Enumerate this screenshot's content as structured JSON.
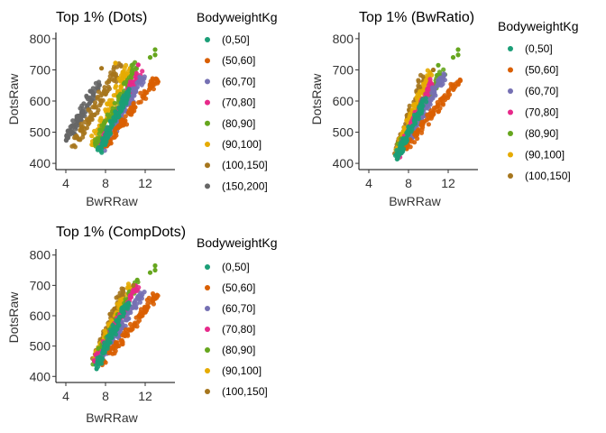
{
  "chart_data": [
    {
      "type": "scatter",
      "title": "Top 1% (Dots)",
      "xlabel": "BwRRaw",
      "ylabel": "DotsRaw",
      "xlim": [
        3,
        15
      ],
      "ylim": [
        380,
        820
      ],
      "xticks": [
        "4",
        "8",
        "12"
      ],
      "yticks": [
        "400",
        "500",
        "600",
        "700",
        "800"
      ],
      "legend_title": "BodyweightKg",
      "legend_placement": "right",
      "series": [
        {
          "name": "(0,50]",
          "color": "#1b9e77",
          "bands": [
            {
              "x0": 7.3,
              "y0": 440,
              "x1": 10.5,
              "y1": 640,
              "spread": 0.25
            }
          ]
        },
        {
          "name": "(50,60]",
          "color": "#d95f02",
          "bands": [
            {
              "x0": 8.0,
              "y0": 455,
              "x1": 13.0,
              "y1": 665,
              "spread": 0.3
            }
          ]
        },
        {
          "name": "(60,70]",
          "color": "#7570b3",
          "bands": [
            {
              "x0": 7.8,
              "y0": 450,
              "x1": 11.8,
              "y1": 680,
              "spread": 0.3
            }
          ]
        },
        {
          "name": "(70,80]",
          "color": "#e7298a",
          "bands": [
            {
              "x0": 7.5,
              "y0": 448,
              "x1": 11.5,
              "y1": 700,
              "spread": 0.3
            }
          ]
        },
        {
          "name": "(80,90]",
          "color": "#66a61e",
          "bands": [
            {
              "x0": 7.0,
              "y0": 452,
              "x1": 11.2,
              "y1": 720,
              "spread": 0.35
            }
          ]
        },
        {
          "name": "(90,100]",
          "color": "#e6ab02",
          "bands": [
            {
              "x0": 6.6,
              "y0": 460,
              "x1": 10.4,
              "y1": 710,
              "spread": 0.35
            }
          ]
        },
        {
          "name": "(100,150]",
          "color": "#a6761d",
          "bands": [
            {
              "x0": 4.8,
              "y0": 455,
              "x1": 9.5,
              "y1": 720,
              "spread": 0.45
            }
          ]
        },
        {
          "name": "(150,200]",
          "color": "#666666",
          "bands": [
            {
              "x0": 4.0,
              "y0": 470,
              "x1": 7.2,
              "y1": 650,
              "spread": 0.35
            }
          ]
        }
      ],
      "outliers": [
        {
          "series": "(80,90]",
          "x": 13.0,
          "y": 765
        },
        {
          "series": "(80,90]",
          "x": 13.0,
          "y": 748
        },
        {
          "series": "(80,90]",
          "x": 12.5,
          "y": 740
        },
        {
          "series": "(90,100]",
          "x": 9.0,
          "y": 722
        },
        {
          "series": "(70,80]",
          "x": 11.3,
          "y": 716
        },
        {
          "series": "(100,150]",
          "x": 7.6,
          "y": 705
        },
        {
          "series": "(50,60]",
          "x": 13.2,
          "y": 668
        },
        {
          "series": "(50,60]",
          "x": 13.3,
          "y": 662
        }
      ]
    },
    {
      "type": "scatter",
      "title": "Top 1% (BwRatio)",
      "xlabel": "BwRRaw",
      "ylabel": "DotsRaw",
      "xlim": [
        3,
        15
      ],
      "ylim": [
        380,
        820
      ],
      "xticks": [
        "4",
        "8",
        "12"
      ],
      "yticks": [
        "400",
        "500",
        "600",
        "700",
        "800"
      ],
      "legend_title": "BodyweightKg",
      "legend_placement": "right",
      "series": [
        {
          "name": "(0,50]",
          "color": "#1b9e77",
          "bands": [
            {
              "x0": 6.8,
              "y0": 418,
              "x1": 9.6,
              "y1": 600,
              "spread": 0.25
            }
          ]
        },
        {
          "name": "(50,60]",
          "color": "#d95f02",
          "bands": [
            {
              "x0": 7.5,
              "y0": 440,
              "x1": 13.0,
              "y1": 665,
              "spread": 0.3
            }
          ]
        },
        {
          "name": "(60,70]",
          "color": "#7570b3",
          "bands": [
            {
              "x0": 7.2,
              "y0": 435,
              "x1": 11.5,
              "y1": 680,
              "spread": 0.3
            }
          ]
        },
        {
          "name": "(70,80]",
          "color": "#e7298a",
          "bands": [
            {
              "x0": 7.0,
              "y0": 430,
              "x1": 10.5,
              "y1": 670,
              "spread": 0.3
            }
          ]
        },
        {
          "name": "(80,90]",
          "color": "#66a61e",
          "bands": [
            {
              "x0": 7.0,
              "y0": 440,
              "x1": 11.5,
              "y1": 700,
              "spread": 0.35
            }
          ]
        },
        {
          "name": "(90,100]",
          "color": "#e6ab02",
          "bands": [
            {
              "x0": 6.9,
              "y0": 445,
              "x1": 10.2,
              "y1": 690,
              "spread": 0.3
            }
          ]
        },
        {
          "name": "(100,150]",
          "color": "#a6761d",
          "bands": [
            {
              "x0": 6.8,
              "y0": 430,
              "x1": 9.5,
              "y1": 680,
              "spread": 0.3
            }
          ]
        }
      ],
      "outliers": [
        {
          "series": "(80,90]",
          "x": 13.0,
          "y": 765
        },
        {
          "series": "(80,90]",
          "x": 13.0,
          "y": 748
        },
        {
          "series": "(80,90]",
          "x": 12.5,
          "y": 740
        },
        {
          "series": "(80,90]",
          "x": 11.0,
          "y": 715
        },
        {
          "series": "(100,150]",
          "x": 10.5,
          "y": 700
        },
        {
          "series": "(50,60]",
          "x": 13.2,
          "y": 668
        },
        {
          "series": "(0,50]",
          "x": 6.9,
          "y": 415
        }
      ]
    },
    {
      "type": "scatter",
      "title": "Top 1% (CompDots)",
      "xlabel": "BwRRaw",
      "ylabel": "DotsRaw",
      "xlim": [
        3,
        15
      ],
      "ylim": [
        380,
        820
      ],
      "xticks": [
        "4",
        "8",
        "12"
      ],
      "yticks": [
        "400",
        "500",
        "600",
        "700",
        "800"
      ],
      "legend_title": "BodyweightKg",
      "legend_placement": "right",
      "series": [
        {
          "name": "(0,50]",
          "color": "#1b9e77",
          "bands": [
            {
              "x0": 7.0,
              "y0": 428,
              "x1": 10.2,
              "y1": 640,
              "spread": 0.25
            }
          ]
        },
        {
          "name": "(50,60]",
          "color": "#d95f02",
          "bands": [
            {
              "x0": 7.8,
              "y0": 445,
              "x1": 13.0,
              "y1": 665,
              "spread": 0.3
            }
          ]
        },
        {
          "name": "(60,70]",
          "color": "#7570b3",
          "bands": [
            {
              "x0": 7.3,
              "y0": 440,
              "x1": 11.8,
              "y1": 680,
              "spread": 0.3
            }
          ]
        },
        {
          "name": "(70,80]",
          "color": "#e7298a",
          "bands": [
            {
              "x0": 7.0,
              "y0": 445,
              "x1": 11.3,
              "y1": 700,
              "spread": 0.3
            }
          ]
        },
        {
          "name": "(80,90]",
          "color": "#66a61e",
          "bands": [
            {
              "x0": 7.0,
              "y0": 448,
              "x1": 11.3,
              "y1": 715,
              "spread": 0.35
            }
          ]
        },
        {
          "name": "(90,100]",
          "color": "#e6ab02",
          "bands": [
            {
              "x0": 7.0,
              "y0": 450,
              "x1": 10.5,
              "y1": 705,
              "spread": 0.3
            }
          ]
        },
        {
          "name": "(100,150]",
          "color": "#a6761d",
          "bands": [
            {
              "x0": 6.9,
              "y0": 445,
              "x1": 9.8,
              "y1": 690,
              "spread": 0.3
            }
          ]
        }
      ],
      "outliers": [
        {
          "series": "(80,90]",
          "x": 13.0,
          "y": 765
        },
        {
          "series": "(80,90]",
          "x": 13.0,
          "y": 750
        },
        {
          "series": "(80,90]",
          "x": 12.5,
          "y": 742
        },
        {
          "series": "(80,90]",
          "x": 11.2,
          "y": 718
        },
        {
          "series": "(100,150]",
          "x": 10.8,
          "y": 700
        },
        {
          "series": "(50,60]",
          "x": 13.2,
          "y": 668
        },
        {
          "series": "(0,50]",
          "x": 7.1,
          "y": 425
        }
      ]
    }
  ]
}
